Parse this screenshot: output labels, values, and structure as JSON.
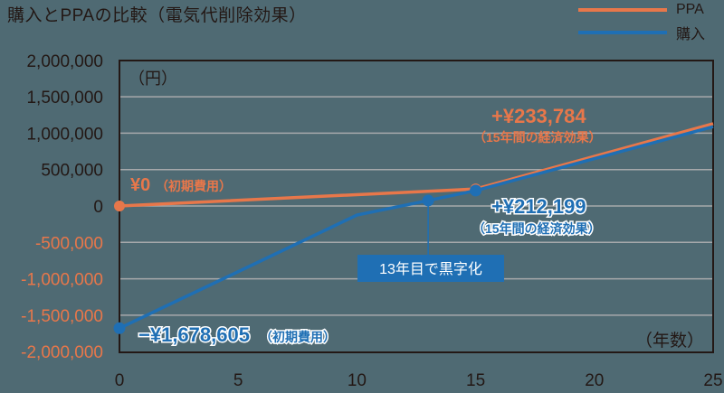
{
  "title": "購入とPPAの比較（電気代削除効果）",
  "legend": [
    {
      "label": "PPA",
      "color": "#e8774a"
    },
    {
      "label": "購入",
      "color": "#1f6fb4"
    }
  ],
  "y_unit": "（円）",
  "x_unit": "（年数）",
  "annotations": {
    "ppa_start": "¥0",
    "ppa_start_note": "（初期費用）",
    "ppa_15": "+¥233,784",
    "ppa_15_note": "（15年間の経済効果）",
    "buy_15": "+¥212,199",
    "buy_15_note": "（15年間の経済効果）",
    "buy_start": "−¥1,678,605",
    "buy_start_note": "（初期費用）",
    "breakeven": "13年目で黒字化"
  },
  "chart_data": {
    "type": "line",
    "title": "購入とPPAの比較（電気代削除効果）",
    "xlabel": "（年数）",
    "ylabel": "（円）",
    "xlim": [
      0,
      25
    ],
    "ylim": [
      -2000000,
      2000000
    ],
    "x_ticks": [
      "0",
      "5",
      "10",
      "15",
      "20",
      "25"
    ],
    "y_ticks": [
      "2,000,000",
      "1,500,000",
      "1,000,000",
      "500,000",
      "0",
      "-500,000",
      "-1,000,000",
      "-1,500,000",
      "-2,000,000"
    ],
    "grid": true,
    "legend_position": "top-right",
    "series": [
      {
        "name": "PPA",
        "color": "#e8774a",
        "x": [
          0,
          15,
          25
        ],
        "values": [
          0,
          233784,
          1130000
        ]
      },
      {
        "name": "購入",
        "color": "#1f6fb4",
        "x": [
          0,
          10,
          13,
          15,
          25
        ],
        "values": [
          -1678605,
          -125000,
          75000,
          212199,
          1090000
        ]
      }
    ]
  }
}
